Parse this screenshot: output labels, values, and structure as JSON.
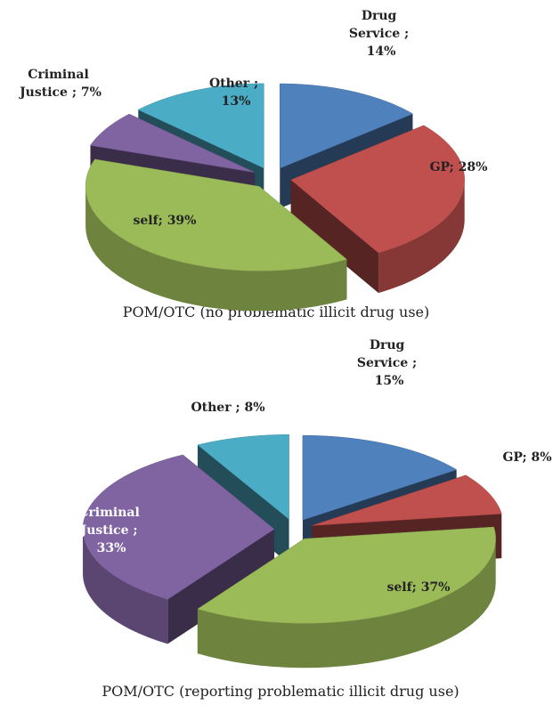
{
  "chart_data": [
    {
      "type": "pie",
      "title": "POM/OTC (no problematic illicit drug use)",
      "labels": [
        "Drug Service ; 14%",
        "GP; 28%",
        "self; 39%",
        "Criminal Justice ; 7%",
        "Other ; 13%"
      ],
      "values": [
        14,
        28,
        39,
        7,
        13
      ],
      "colors": [
        "#4f81bd",
        "#c0504d",
        "#9bbb59",
        "#8064a2",
        "#4bacc6"
      ]
    },
    {
      "type": "pie",
      "title": "POM/OTC (reporting problematic illicit drug use)",
      "labels": [
        "Drug Service ; 15%",
        "GP; 8%",
        "self; 37%",
        "Criminal Justice ; 33%",
        "Other ; 8%"
      ],
      "values": [
        15,
        8,
        37,
        33,
        8
      ],
      "colors": [
        "#4f81bd",
        "#c0504d",
        "#9bbb59",
        "#8064a2",
        "#4bacc6"
      ]
    }
  ]
}
